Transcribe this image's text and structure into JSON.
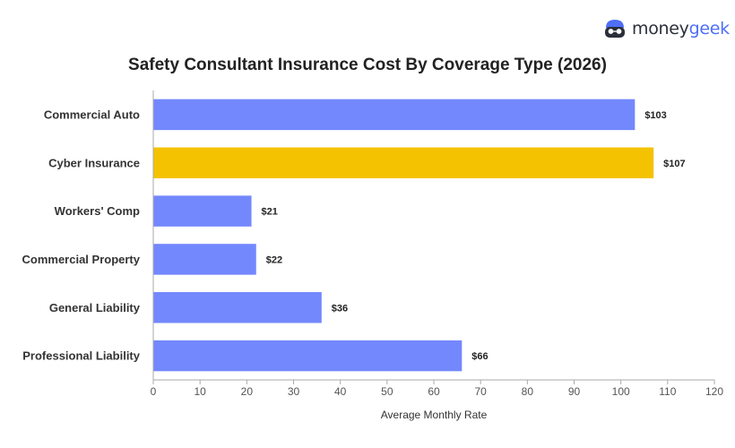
{
  "brand": {
    "name_part1": "money",
    "name_part2": "geek"
  },
  "colors": {
    "default_bar": "#7388fd",
    "highlight_bar": "#f4c200",
    "axis": "#aaaaaa",
    "brand_accent": "#4f6ef7"
  },
  "chart_data": {
    "type": "bar",
    "orientation": "horizontal",
    "title": "Safety Consultant Insurance Cost By Coverage Type (2026)",
    "xlabel": "Average Monthly Rate",
    "ylabel": "",
    "categories": [
      "Commercial Auto",
      "Cyber Insurance",
      "Workers' Comp",
      "Commercial Property",
      "General Liability",
      "Professional Liability"
    ],
    "values": [
      103,
      107,
      21,
      22,
      36,
      66
    ],
    "value_labels": [
      "$103",
      "$107",
      "$21",
      "$22",
      "$36",
      "$66"
    ],
    "highlighted": [
      "Cyber Insurance"
    ],
    "xlim": [
      0,
      120
    ],
    "xticks": [
      0,
      10,
      20,
      30,
      40,
      50,
      60,
      70,
      80,
      90,
      100,
      110,
      120
    ],
    "grid": false,
    "legend": "none"
  }
}
